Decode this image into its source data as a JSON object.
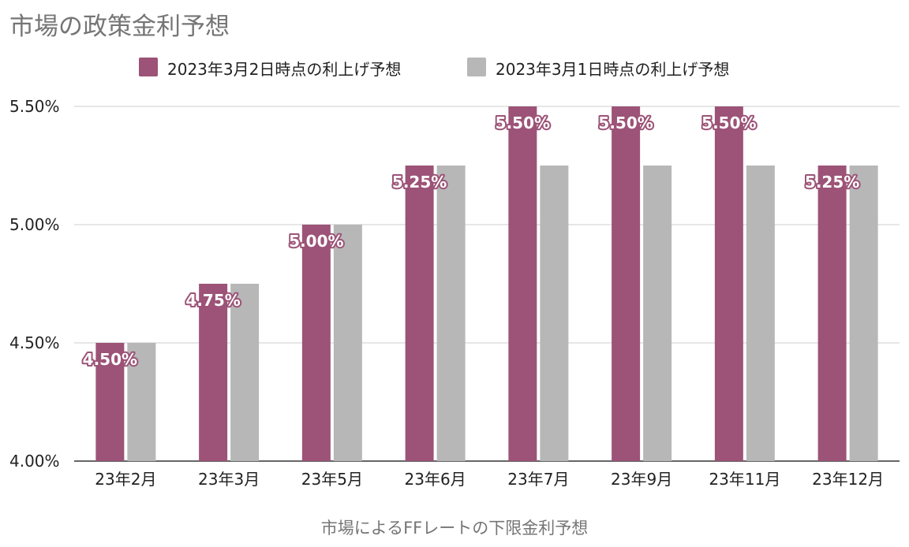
{
  "chart_data": {
    "type": "bar",
    "title": "市場の政策金利予想",
    "xlabel": "市場によるFFレートの下限金利予想",
    "ylabel": "",
    "ylim": [
      4.0,
      5.5
    ],
    "yticks": [
      "4.00%",
      "4.50%",
      "5.00%",
      "5.50%"
    ],
    "ytick_values": [
      4.0,
      4.5,
      5.0,
      5.5
    ],
    "grid": true,
    "legend_position": "top",
    "categories": [
      "23年2月",
      "23年3月",
      "23年5月",
      "23年6月",
      "23年7月",
      "23年9月",
      "23年11月",
      "23年12月"
    ],
    "series": [
      {
        "name": "2023年3月2日時点の利上げ予想",
        "color": "#9c5377",
        "values": [
          4.5,
          4.75,
          5.0,
          5.25,
          5.5,
          5.5,
          5.5,
          5.25
        ],
        "data_labels": [
          "4.50%",
          "4.75%",
          "5.00%",
          "5.25%",
          "5.50%",
          "5.50%",
          "5.50%",
          "5.25%"
        ]
      },
      {
        "name": "2023年3月1日時点の利上げ予想",
        "color": "#b7b7b7",
        "values": [
          4.5,
          4.75,
          5.0,
          5.25,
          5.25,
          5.25,
          5.25,
          5.25
        ]
      }
    ]
  }
}
